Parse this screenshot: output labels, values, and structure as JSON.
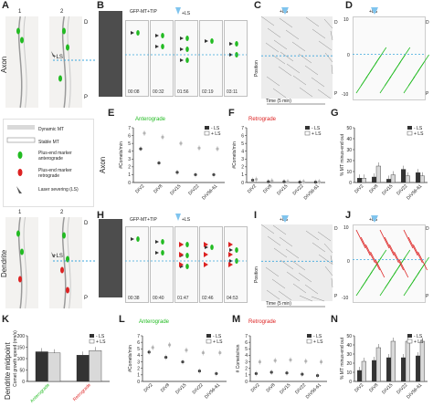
{
  "panel_letters": {
    "A": "A",
    "B": "B",
    "C": "C",
    "D": "D",
    "E": "E",
    "F": "F",
    "G": "G",
    "H": "H",
    "I": "I",
    "J": "J",
    "K": "K",
    "L": "L",
    "M": "M",
    "N": "N"
  },
  "side_labels": {
    "axon": "Axon",
    "dendrite": "Dendrite",
    "dendrite_midpoint": "Dendrite midpoint"
  },
  "neuron_labels": {
    "one": "1",
    "two": "2",
    "ls": "+LS",
    "D": "D",
    "P": "P"
  },
  "legend_A": {
    "dynamic_mt": "Dynamic MT",
    "stable_mt": "Stable MT",
    "plus_end_antero": "Plus-end marker anterograde",
    "plus_end_retro": "Plus-end marker retrograde",
    "laser": "Laser severing (LS)"
  },
  "B": {
    "title": "GFP-MT+TIP",
    "ls": "+LS",
    "timestamps": [
      "00:08",
      "00:32",
      "01:56",
      "02:19",
      "03:11"
    ]
  },
  "H": {
    "title": "GFP-MT+TIP",
    "ls": "+LS",
    "timestamps": [
      "00:38",
      "00:40",
      "01:47",
      "02:46",
      "04:53"
    ]
  },
  "kymo": {
    "ls": "+LS",
    "position": "Position",
    "time": "Time (5 min)",
    "D": "D",
    "P": "P",
    "ticks_J": [
      "10",
      "0",
      "-10"
    ]
  },
  "E": {
    "header": "Anterograde",
    "ylabel": "#Comets/min",
    "xcats": [
      "DIV2",
      "DIV8",
      "DIV15",
      "DIV22",
      "DIV56-61"
    ],
    "legend": [
      "- LS",
      "+ LS"
    ],
    "yticks": [
      "0",
      "1",
      "2",
      "3",
      "4",
      "5",
      "6",
      "7"
    ]
  },
  "F": {
    "header": "Retrograde",
    "ylabel": "#Comets/min",
    "xcats": [
      "DIV2",
      "DIV8",
      "DIV15",
      "DIV22",
      "DIV56-61"
    ],
    "legend": [
      "- LS",
      "+ LS"
    ],
    "yticks": [
      "0",
      "1",
      "2",
      "3",
      "4",
      "5",
      "6",
      "7"
    ]
  },
  "G": {
    "ylabel": "% MT minus-end out",
    "xcats": [
      "DIV2",
      "DIV8",
      "DIV15",
      "DIV22",
      "DIV56-61"
    ],
    "legend": [
      "- LS",
      "+ LS"
    ],
    "yticks": [
      "0",
      "10",
      "20",
      "30",
      "40",
      "50"
    ]
  },
  "K": {
    "ylabel": "Comet growth speed (nm/s)",
    "xcats": [
      "Anterograde",
      "Retrograde"
    ],
    "legend": [
      "- LS",
      "+ LS"
    ],
    "yticks": [
      "0",
      "50",
      "100",
      "150",
      "200"
    ]
  },
  "L": {
    "header": "Anterograde",
    "ylabel": "#Comets/min",
    "xcats": [
      "DIV2",
      "DIV8",
      "DIV15",
      "DIV22",
      "DIV56-61"
    ],
    "legend": [
      "- LS",
      "+ LS"
    ],
    "yticks": [
      "0",
      "1",
      "2",
      "3",
      "4",
      "5",
      "6",
      "7"
    ]
  },
  "M": {
    "header": "Retrograde",
    "ylabel": "# Comets/min",
    "xcats": [
      "DIV2",
      "DIV8",
      "DIV15",
      "DIV22",
      "DIV56-61"
    ],
    "legend": [
      "- LS",
      "+ LS"
    ],
    "yticks": [
      "0",
      "1",
      "2",
      "3",
      "4",
      "5",
      "6",
      "7"
    ]
  },
  "N": {
    "ylabel": "% MT minus-end out",
    "xcats": [
      "DIV2",
      "DIV8",
      "DIV15",
      "DIV22",
      "DIV56-61"
    ],
    "legend": [
      "- LS",
      "+ LS"
    ],
    "yticks": [
      "0",
      "10",
      "20",
      "30",
      "40",
      "50"
    ]
  },
  "colors": {
    "antero": "#22bb22",
    "retro": "#dd2222",
    "ls_arrow": "#7fc4ee",
    "dash": "#3aa6dd",
    "bar_dark": "#333333",
    "bar_light": "#d9d9d9"
  },
  "chart_data": [
    {
      "panel": "E",
      "type": "scatter",
      "categories": [
        "DIV2",
        "DIV8",
        "DIV15",
        "DIV22",
        "DIV56-61"
      ],
      "series": [
        {
          "name": "- LS",
          "values": [
            4.3,
            2.5,
            1.3,
            1.0,
            1.0
          ]
        },
        {
          "name": "+ LS",
          "values": [
            6.3,
            5.8,
            5.0,
            4.4,
            4.3
          ]
        }
      ],
      "ylim": [
        0,
        7
      ]
    },
    {
      "panel": "F",
      "type": "scatter",
      "categories": [
        "DIV2",
        "DIV8",
        "DIV15",
        "DIV22",
        "DIV56-61"
      ],
      "series": [
        {
          "name": "- LS",
          "values": [
            0.3,
            0.1,
            0.1,
            0.05,
            0.05
          ]
        },
        {
          "name": "+ LS",
          "values": [
            0.4,
            0.2,
            0.1,
            0.1,
            0.1
          ]
        }
      ],
      "ylim": [
        0,
        7
      ]
    },
    {
      "panel": "G",
      "type": "bar",
      "categories": [
        "DIV2",
        "DIV8",
        "DIV15",
        "DIV22",
        "DIV56-61"
      ],
      "series": [
        {
          "name": "- LS",
          "values": [
            4,
            5,
            3,
            12,
            9
          ]
        },
        {
          "name": "+ LS",
          "values": [
            4,
            15,
            7,
            6,
            6
          ]
        }
      ],
      "ylim": [
        0,
        50
      ]
    },
    {
      "panel": "K",
      "type": "bar",
      "categories": [
        "Anterograde",
        "Retrograde"
      ],
      "series": [
        {
          "name": "- LS",
          "values": [
            130,
            115
          ]
        },
        {
          "name": "+ LS",
          "values": [
            125,
            135
          ]
        }
      ],
      "ylim": [
        0,
        200
      ]
    },
    {
      "panel": "L",
      "type": "scatter",
      "categories": [
        "DIV2",
        "DIV8",
        "DIV15",
        "DIV22",
        "DIV56-61"
      ],
      "series": [
        {
          "name": "- LS",
          "values": [
            4.5,
            3.7,
            3.0,
            1.6,
            1.2
          ]
        },
        {
          "name": "+ LS",
          "values": [
            5.2,
            5.6,
            4.8,
            4.4,
            4.4
          ]
        }
      ],
      "ylim": [
        0,
        7
      ]
    },
    {
      "panel": "M",
      "type": "scatter",
      "categories": [
        "DIV2",
        "DIV8",
        "DIV15",
        "DIV22",
        "DIV56-61"
      ],
      "series": [
        {
          "name": "- LS",
          "values": [
            1.2,
            1.4,
            1.3,
            1.1,
            0.9
          ]
        },
        {
          "name": "+ LS",
          "values": [
            3.0,
            3.2,
            3.3,
            3.1,
            3.0
          ]
        }
      ],
      "ylim": [
        0,
        7
      ]
    },
    {
      "panel": "N",
      "type": "bar",
      "categories": [
        "DIV2",
        "DIV8",
        "DIV15",
        "DIV22",
        "DIV56-61"
      ],
      "series": [
        {
          "name": "- LS",
          "values": [
            12,
            23,
            26,
            26,
            28
          ]
        },
        {
          "name": "+ LS",
          "values": [
            22,
            37,
            44,
            44,
            44
          ]
        }
      ],
      "ylim": [
        0,
        50
      ]
    }
  ]
}
